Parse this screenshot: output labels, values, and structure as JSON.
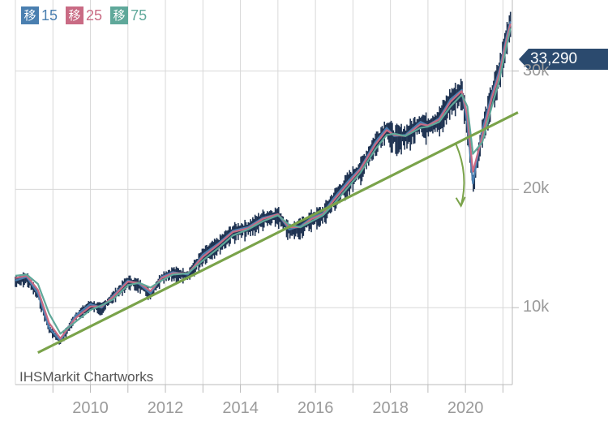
{
  "chart_data": {
    "type": "line",
    "title": "",
    "xlabel": "",
    "ylabel": "",
    "source_label": "IHSMarkit Chartworks",
    "last_value_label": "33,290",
    "last_value": 33290,
    "xlim": [
      2008.0,
      2021.25
    ],
    "ylim": [
      3500,
      36000
    ],
    "x_ticks": [
      {
        "value": 2010,
        "label": "2010"
      },
      {
        "value": 2012,
        "label": "2012"
      },
      {
        "value": 2014,
        "label": "2014"
      },
      {
        "value": 2016,
        "label": "2016"
      },
      {
        "value": 2018,
        "label": "2018"
      },
      {
        "value": 2020,
        "label": "2020"
      }
    ],
    "y_ticks": [
      {
        "value": 10000,
        "label": "10k"
      },
      {
        "value": 20000,
        "label": "20k"
      },
      {
        "value": 30000,
        "label": "30k"
      }
    ],
    "grid": true,
    "legend_position": "top-left",
    "legend": [
      {
        "icon_text": "移",
        "label": "15",
        "color": "#4a7fb0"
      },
      {
        "icon_text": "移",
        "label": "25",
        "color": "#c96b84"
      },
      {
        "icon_text": "移",
        "label": "75",
        "color": "#5fa89a"
      }
    ],
    "candles_color": "#1f3352",
    "series": [
      {
        "name": "15",
        "color": "#4a7fb0",
        "x": [
          2008.0,
          2008.3,
          2008.6,
          2008.9,
          2009.2,
          2009.6,
          2010.0,
          2010.3,
          2010.6,
          2011.0,
          2011.3,
          2011.6,
          2011.9,
          2012.2,
          2012.6,
          2013.0,
          2013.4,
          2013.8,
          2014.2,
          2014.6,
          2015.0,
          2015.3,
          2015.6,
          2015.9,
          2016.2,
          2016.5,
          2016.9,
          2017.2,
          2017.6,
          2017.9,
          2018.1,
          2018.4,
          2018.8,
          2019.0,
          2019.3,
          2019.6,
          2019.9,
          2020.05,
          2020.2,
          2020.45,
          2020.7,
          2020.9,
          2021.1,
          2021.2
        ],
        "y": [
          12300,
          12600,
          11200,
          8300,
          7200,
          9300,
          10300,
          10000,
          11000,
          12300,
          12000,
          11200,
          12600,
          13000,
          12800,
          14500,
          15400,
          16500,
          16800,
          17600,
          17900,
          16600,
          16900,
          17600,
          18000,
          19300,
          20800,
          21800,
          24000,
          25200,
          24500,
          24600,
          25700,
          25400,
          26000,
          27600,
          28400,
          25500,
          20500,
          25000,
          28000,
          30000,
          33000,
          34200
        ]
      },
      {
        "name": "25",
        "color": "#c96b84",
        "x": [
          2008.0,
          2008.3,
          2008.6,
          2008.9,
          2009.2,
          2009.6,
          2010.0,
          2010.3,
          2010.6,
          2011.0,
          2011.3,
          2011.6,
          2011.9,
          2012.2,
          2012.6,
          2013.0,
          2013.4,
          2013.8,
          2014.2,
          2014.6,
          2015.0,
          2015.3,
          2015.6,
          2015.9,
          2016.2,
          2016.5,
          2016.9,
          2017.2,
          2017.6,
          2017.9,
          2018.1,
          2018.4,
          2018.8,
          2019.0,
          2019.3,
          2019.6,
          2019.9,
          2020.05,
          2020.2,
          2020.45,
          2020.7,
          2020.9,
          2021.1,
          2021.2
        ],
        "y": [
          12500,
          12700,
          11500,
          8700,
          7400,
          9100,
          10100,
          10100,
          10900,
          12200,
          12100,
          11400,
          12500,
          12900,
          12900,
          14300,
          15300,
          16400,
          16700,
          17500,
          17900,
          16800,
          16800,
          17500,
          17900,
          19100,
          20600,
          21700,
          23800,
          25000,
          24600,
          24500,
          25500,
          25400,
          25900,
          27400,
          28300,
          26200,
          21500,
          24500,
          27700,
          29700,
          32700,
          34000
        ]
      },
      {
        "name": "75",
        "color": "#5fa89a",
        "x": [
          2008.0,
          2008.3,
          2008.6,
          2008.9,
          2009.2,
          2009.6,
          2010.0,
          2010.3,
          2010.6,
          2011.0,
          2011.3,
          2011.6,
          2011.9,
          2012.2,
          2012.6,
          2013.0,
          2013.4,
          2013.8,
          2014.2,
          2014.6,
          2015.0,
          2015.3,
          2015.6,
          2015.9,
          2016.2,
          2016.5,
          2016.9,
          2017.2,
          2017.6,
          2017.9,
          2018.1,
          2018.4,
          2018.8,
          2019.0,
          2019.3,
          2019.6,
          2019.9,
          2020.05,
          2020.2,
          2020.45,
          2020.7,
          2020.9,
          2021.1,
          2021.2
        ],
        "y": [
          12700,
          12800,
          12000,
          9500,
          7800,
          8800,
          9800,
          10200,
          10700,
          11900,
          12100,
          11700,
          12300,
          12800,
          12900,
          14000,
          15000,
          16100,
          16600,
          17300,
          17800,
          17000,
          16800,
          17300,
          17800,
          18800,
          20300,
          21400,
          23400,
          24600,
          24700,
          24500,
          25200,
          25300,
          25700,
          27000,
          28000,
          27000,
          23000,
          24000,
          27000,
          29200,
          32200,
          33600
        ]
      }
    ],
    "annotations": [
      {
        "type": "trendline",
        "color": "#7aa34a",
        "x": [
          2008.6,
          2021.4
        ],
        "y": [
          6200,
          26500
        ]
      },
      {
        "type": "arrow",
        "color": "#7aa34a",
        "x": [
          2019.75,
          2019.88
        ],
        "y": [
          23800,
          18600
        ]
      }
    ]
  }
}
